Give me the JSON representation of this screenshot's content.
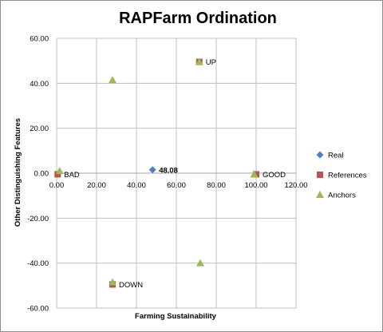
{
  "chart_data": {
    "type": "scatter",
    "title": "RAPFarm Ordination",
    "xlabel": "Farming Sustainability",
    "ylabel": "Other Distinguishing Features",
    "xlim": [
      0,
      120
    ],
    "ylim": [
      -60,
      60
    ],
    "x_ticks": [
      "0.00",
      "20.00",
      "40.00",
      "60.00",
      "80.00",
      "100.00",
      "120.00"
    ],
    "y_ticks": [
      "60.00",
      "40.00",
      "20.00",
      "0.00",
      "-20.00",
      "-40.00",
      "-60.00"
    ],
    "grid": "major both axes",
    "legend_position": "right",
    "colors": {
      "Real": "#4f81bd",
      "References": "#c0504d",
      "Anchors": "#9bbb59"
    },
    "series": [
      {
        "name": "Real",
        "marker": "diamond",
        "points": [
          {
            "x": 48.08,
            "y": 1.5,
            "label": "48.08"
          }
        ]
      },
      {
        "name": "References",
        "marker": "square",
        "points": [
          {
            "x": 0.5,
            "y": -0.5,
            "label": "BAD"
          },
          {
            "x": 71.5,
            "y": 49.5,
            "label": "UP"
          },
          {
            "x": 100,
            "y": -0.5,
            "label": "GOOD"
          },
          {
            "x": 28,
            "y": -49.5,
            "label": "DOWN"
          }
        ]
      },
      {
        "name": "Anchors",
        "marker": "triangle",
        "points": [
          {
            "x": 1.5,
            "y": 1
          },
          {
            "x": 71.5,
            "y": 49.5
          },
          {
            "x": 99,
            "y": -0.5
          },
          {
            "x": 28,
            "y": 41.5
          },
          {
            "x": 28,
            "y": -48.5
          },
          {
            "x": 72,
            "y": -40
          }
        ]
      }
    ]
  }
}
